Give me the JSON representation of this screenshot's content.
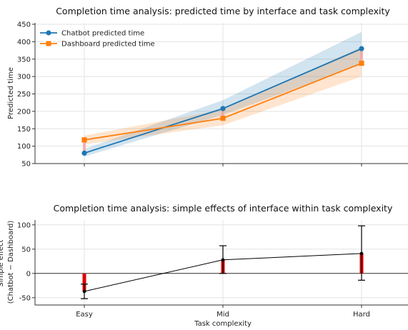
{
  "chart_data": [
    {
      "type": "line",
      "title": "Completion time analysis: predicted time by interface and task complexity",
      "xlabel": "",
      "ylabel": "Predicted time",
      "categories": [
        "Easy",
        "Mid",
        "Hard"
      ],
      "ylim": [
        50,
        450
      ],
      "yticks": [
        50,
        100,
        150,
        200,
        250,
        300,
        350,
        400,
        450
      ],
      "grid": true,
      "legend": "top-left",
      "series": [
        {
          "name": "Chatbot predicted time",
          "values": [
            80,
            208,
            380
          ],
          "ci_low": [
            70,
            190,
            335
          ],
          "ci_high": [
            92,
            232,
            428
          ],
          "color": "#1f77b4",
          "marker": "circle"
        },
        {
          "name": "Dashboard predicted time",
          "values": [
            118,
            180,
            338
          ],
          "ci_low": [
            105,
            160,
            300
          ],
          "ci_high": [
            130,
            205,
            385
          ],
          "color": "#ff7f0e",
          "marker": "square"
        }
      ],
      "difference_segment_color": "#f4a3a3"
    },
    {
      "type": "line",
      "title": "Completion time analysis: simple effects of interface within task complexity",
      "xlabel": "Task complexity",
      "ylabel": "Simple effect\n(Chatbot − Dashboard)",
      "categories": [
        "Easy",
        "Mid",
        "Hard"
      ],
      "ylim": [
        -65,
        110
      ],
      "yticks": [
        -50,
        0,
        50,
        100
      ],
      "grid": true,
      "series": [
        {
          "values": [
            -37,
            28,
            41
          ],
          "ci_low": [
            -52,
            0,
            -14
          ],
          "ci_high": [
            -22,
            57,
            98
          ],
          "color": "#000000"
        }
      ],
      "reference_line": 0,
      "bar_color": "#e00000"
    }
  ]
}
